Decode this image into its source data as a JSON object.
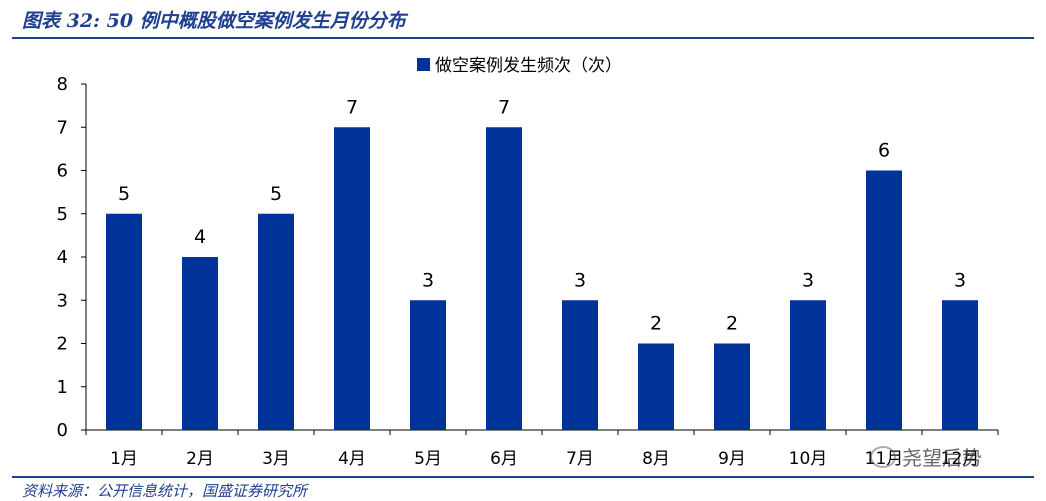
{
  "header": {
    "title": "图表 32:  50 例中概股做空案例发生月份分布"
  },
  "footer": {
    "source": "资料来源：公开信息统计，国盛证券研究所"
  },
  "watermark": {
    "text": "尧望后势",
    "icon": "wechat-icon"
  },
  "colors": {
    "bar": "#003399",
    "rule": "#1f3f91",
    "text": "#000000"
  },
  "chart_data": {
    "type": "bar",
    "categories": [
      "1月",
      "2月",
      "3月",
      "4月",
      "5月",
      "6月",
      "7月",
      "8月",
      "9月",
      "10月",
      "11月",
      "12月"
    ],
    "series": [
      {
        "name": "做空案例发生频次（次）",
        "values": [
          5,
          4,
          5,
          7,
          3,
          7,
          3,
          2,
          2,
          3,
          6,
          3
        ]
      }
    ],
    "ylim": [
      0,
      8
    ],
    "yticks": [
      0,
      1,
      2,
      3,
      4,
      5,
      6,
      7,
      8
    ],
    "legend": "top-center",
    "grid": false,
    "data_labels": true
  }
}
